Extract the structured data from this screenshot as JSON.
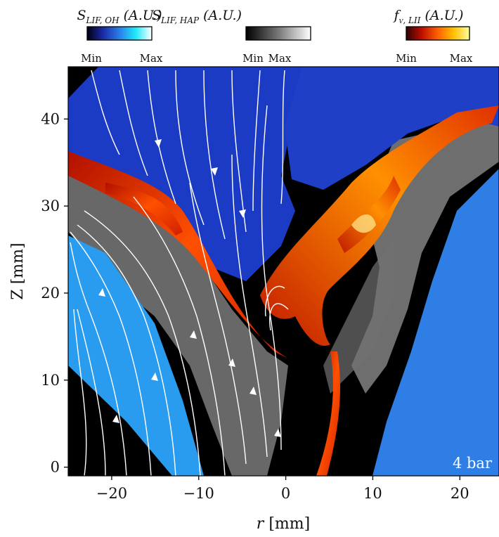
{
  "chart_data": {
    "type": "image",
    "xlabel": {
      "symbol": "r",
      "unit": "[mm]"
    },
    "ylabel": "Z [mm]",
    "xlim": [
      -25,
      24.5
    ],
    "ylim": [
      -1,
      46
    ],
    "xticks": [
      {
        "value": -20,
        "label": "−20"
      },
      {
        "value": -10,
        "label": "−10"
      },
      0,
      10,
      20
    ],
    "yticks": [
      0,
      10,
      20,
      30,
      40
    ],
    "annotation": "4 bar",
    "colorbars": [
      {
        "symbol": "S",
        "subscript": "LIF, OH",
        "unit": "(A.U.)",
        "min_label": "Min",
        "max_label": "Max",
        "colors": [
          "#000010",
          "#1a2ca8",
          "#2a7ee8",
          "#20e8f8",
          "#ffffff"
        ]
      },
      {
        "symbol": "S",
        "subscript": "LIF, HAP",
        "unit": "(A.U.)",
        "min_label": "Min",
        "max_label": "Max",
        "colors": [
          "#000000",
          "#777777",
          "#ffffff"
        ]
      },
      {
        "symbol": "f",
        "subscript": "v, LII",
        "unit": "(A.U.)",
        "min_label": "Min",
        "max_label": "Max",
        "colors": [
          "#300000",
          "#c01000",
          "#ff6000",
          "#ffc000",
          "#ffffa0"
        ]
      }
    ]
  }
}
